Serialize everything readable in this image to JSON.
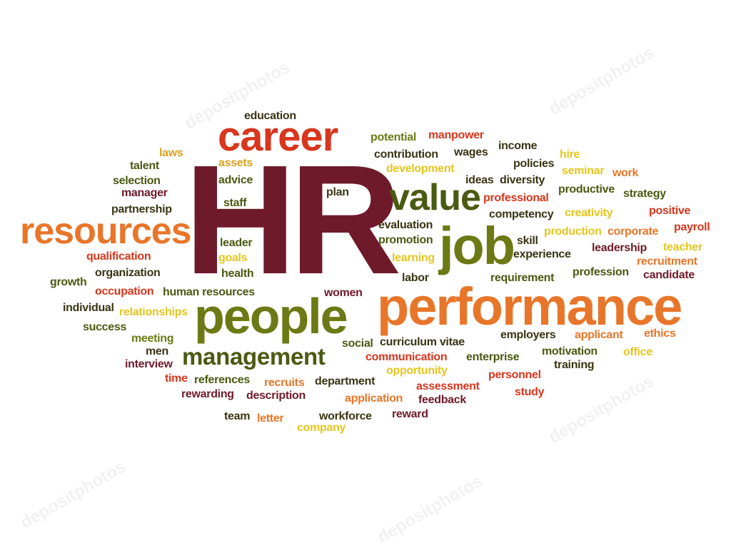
{
  "watermark": "depositphotos",
  "words": [
    {
      "text": "HR",
      "color": "#6e1a2a"
    },
    {
      "text": "performance",
      "color": "#e8762a"
    },
    {
      "text": "people",
      "color": "#6b7a14"
    },
    {
      "text": "career",
      "color": "#d8361d"
    },
    {
      "text": "resources",
      "color": "#e8762a"
    },
    {
      "text": "value",
      "color": "#4a5a12"
    },
    {
      "text": "job",
      "color": "#6b7a14"
    },
    {
      "text": "management",
      "color": "#4a5a12"
    },
    {
      "text": "education",
      "color": "#3a3414"
    },
    {
      "text": "potential",
      "color": "#6b7a14"
    },
    {
      "text": "manpower",
      "color": "#d8361d"
    },
    {
      "text": "laws",
      "color": "#dba11e"
    },
    {
      "text": "assets",
      "color": "#dba11e"
    },
    {
      "text": "contribution",
      "color": "#3a3414"
    },
    {
      "text": "wages",
      "color": "#3a3414"
    },
    {
      "text": "income",
      "color": "#3a3414"
    },
    {
      "text": "hire",
      "color": "#e5c51f"
    },
    {
      "text": "talent",
      "color": "#4a5a12"
    },
    {
      "text": "advice",
      "color": "#4a5a12"
    },
    {
      "text": "development",
      "color": "#e5c51f"
    },
    {
      "text": "policies",
      "color": "#3a3414"
    },
    {
      "text": "seminar",
      "color": "#e5c51f"
    },
    {
      "text": "work",
      "color": "#e8762a"
    },
    {
      "text": "selection",
      "color": "#4a5a12"
    },
    {
      "text": "ideas",
      "color": "#3a3414"
    },
    {
      "text": "diversity",
      "color": "#3a3414"
    },
    {
      "text": "manager",
      "color": "#6e1a2a"
    },
    {
      "text": "plan",
      "color": "#3a3414"
    },
    {
      "text": "professional",
      "color": "#d8361d"
    },
    {
      "text": "productive",
      "color": "#4a5a12"
    },
    {
      "text": "strategy",
      "color": "#4a5a12"
    },
    {
      "text": "staff",
      "color": "#4a5a12"
    },
    {
      "text": "partnership",
      "color": "#3a3414"
    },
    {
      "text": "positive",
      "color": "#d8361d"
    },
    {
      "text": "competency",
      "color": "#3a3414"
    },
    {
      "text": "creativity",
      "color": "#e5c51f"
    },
    {
      "text": "evaluation",
      "color": "#3a3414"
    },
    {
      "text": "payroll",
      "color": "#d8361d"
    },
    {
      "text": "production",
      "color": "#e5c51f"
    },
    {
      "text": "corporate",
      "color": "#e8762a"
    },
    {
      "text": "leader",
      "color": "#4a5a12"
    },
    {
      "text": "promotion",
      "color": "#4a5a12"
    },
    {
      "text": "skill",
      "color": "#3a3414"
    },
    {
      "text": "leadership",
      "color": "#6e1a2a"
    },
    {
      "text": "teacher",
      "color": "#e5c51f"
    },
    {
      "text": "goals",
      "color": "#e5c51f"
    },
    {
      "text": "learning",
      "color": "#e5c51f"
    },
    {
      "text": "experience",
      "color": "#3a3414"
    },
    {
      "text": "recruitment",
      "color": "#e8762a"
    },
    {
      "text": "qualification",
      "color": "#d8361d"
    },
    {
      "text": "health",
      "color": "#4a5a12"
    },
    {
      "text": "profession",
      "color": "#4a5a12"
    },
    {
      "text": "candidate",
      "color": "#6e1a2a"
    },
    {
      "text": "organization",
      "color": "#3a3414"
    },
    {
      "text": "labor",
      "color": "#3a3414"
    },
    {
      "text": "requirement",
      "color": "#4a5a12"
    },
    {
      "text": "growth",
      "color": "#4a5a12"
    },
    {
      "text": "occupation",
      "color": "#d8361d"
    },
    {
      "text": "human resources",
      "color": "#4a5a12"
    },
    {
      "text": "women",
      "color": "#6e1a2a"
    },
    {
      "text": "individual",
      "color": "#3a3414"
    },
    {
      "text": "relationships",
      "color": "#e5c51f"
    },
    {
      "text": "success",
      "color": "#4a5a12"
    },
    {
      "text": "curriculum vitae",
      "color": "#3a3414"
    },
    {
      "text": "employers",
      "color": "#3a3414"
    },
    {
      "text": "applicant",
      "color": "#e8762a"
    },
    {
      "text": "ethics",
      "color": "#e8762a"
    },
    {
      "text": "meeting",
      "color": "#6b7a14"
    },
    {
      "text": "social",
      "color": "#4a5a12"
    },
    {
      "text": "men",
      "color": "#3a3414"
    },
    {
      "text": "communication",
      "color": "#d8361d"
    },
    {
      "text": "enterprise",
      "color": "#4a5a12"
    },
    {
      "text": "motivation",
      "color": "#4a5a12"
    },
    {
      "text": "office",
      "color": "#e5c51f"
    },
    {
      "text": "interview",
      "color": "#6e1a2a"
    },
    {
      "text": "opportunity",
      "color": "#e5c51f"
    },
    {
      "text": "training",
      "color": "#3a3414"
    },
    {
      "text": "time",
      "color": "#d8361d"
    },
    {
      "text": "references",
      "color": "#4a5a12"
    },
    {
      "text": "recruits",
      "color": "#e8762a"
    },
    {
      "text": "department",
      "color": "#3a3414"
    },
    {
      "text": "personnel",
      "color": "#d8361d"
    },
    {
      "text": "assessment",
      "color": "#d8361d"
    },
    {
      "text": "rewarding",
      "color": "#6e1a2a"
    },
    {
      "text": "description",
      "color": "#6e1a2a"
    },
    {
      "text": "application",
      "color": "#e8762a"
    },
    {
      "text": "study",
      "color": "#d8361d"
    },
    {
      "text": "feedback",
      "color": "#6e1a2a"
    },
    {
      "text": "team",
      "color": "#3a3414"
    },
    {
      "text": "letter",
      "color": "#e8762a"
    },
    {
      "text": "workforce",
      "color": "#3a3414"
    },
    {
      "text": "reward",
      "color": "#6e1a2a"
    },
    {
      "text": "company",
      "color": "#e5c51f"
    }
  ]
}
